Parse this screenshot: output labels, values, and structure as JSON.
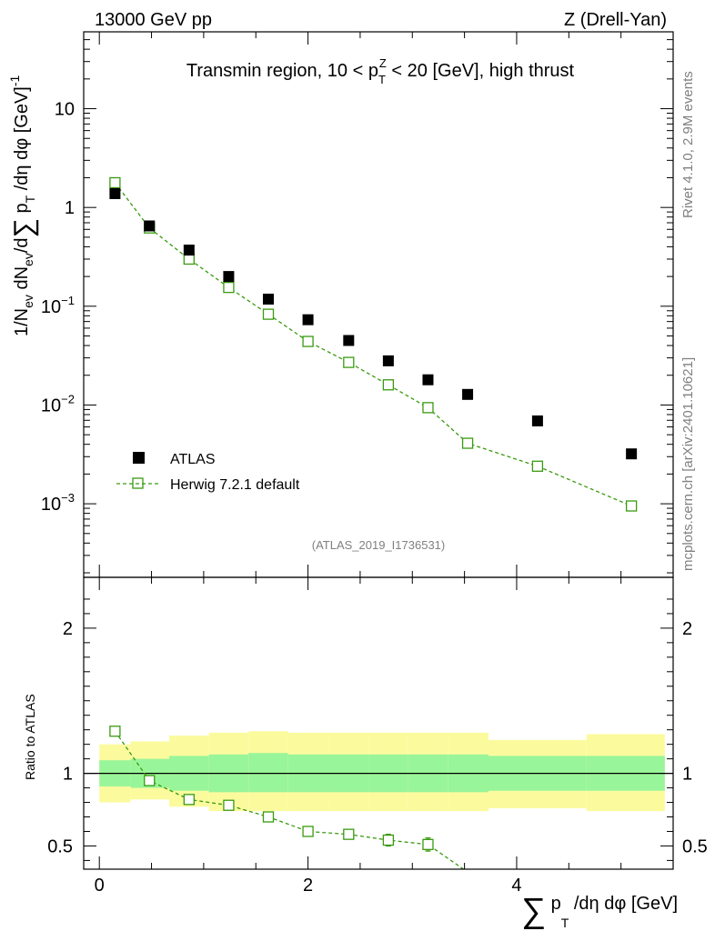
{
  "header": {
    "energy_label": "13000 GeV pp",
    "process_label": "Z (Drell-Yan)"
  },
  "side_labels": {
    "rivet": "Rivet 4.1.0,  2.9M events",
    "mcplots": "mcplots.cern.ch [arXiv:2401.10621]"
  },
  "colors": {
    "data": "#000000",
    "mc": "#3a9a10",
    "band_inner": "#99f599",
    "band_outer": "#fbfb9e"
  },
  "chart_data": [
    {
      "type": "scatter",
      "title_parts": {
        "pre": "Transmin region, 10 < p",
        "sub": "T",
        "sup": "Z",
        "post": " < 20 [GeV], high thrust"
      },
      "watermark": "(ATLAS_2019_I1736531)",
      "yscale": "log",
      "xlim": [
        -0.15,
        5.5
      ],
      "ylim": [
        0.00018,
        60
      ],
      "ylabel": "1/N_ev dN_ev/d Σ p_T /dη dφ [GeV]^-1",
      "ytick_labels": [
        {
          "value": 10,
          "text": "10"
        },
        {
          "value": 1,
          "text": "1"
        },
        {
          "value": 0.1,
          "base": "10",
          "exp": "−1"
        },
        {
          "value": 0.01,
          "base": "10",
          "exp": "−2"
        },
        {
          "value": 0.001,
          "base": "10",
          "exp": "−3"
        }
      ],
      "legend": {
        "position": "lower-left",
        "entries": [
          "ATLAS",
          "Herwig 7.2.1 default"
        ]
      },
      "series": [
        {
          "name": "ATLAS",
          "marker": "filled-square",
          "x": [
            0.15,
            0.48,
            0.86,
            1.24,
            1.62,
            2.0,
            2.39,
            2.77,
            3.15,
            3.53,
            4.2,
            5.1
          ],
          "y": [
            1.38,
            0.65,
            0.37,
            0.2,
            0.118,
            0.073,
            0.045,
            0.028,
            0.018,
            0.0128,
            0.0069,
            0.0032
          ]
        },
        {
          "name": "Herwig 7.2.1 default",
          "marker": "open-square-dashed",
          "x": [
            0.15,
            0.48,
            0.86,
            1.24,
            1.62,
            2.0,
            2.39,
            2.77,
            3.15,
            3.53,
            4.2,
            5.1
          ],
          "y": [
            1.78,
            0.62,
            0.3,
            0.155,
            0.083,
            0.044,
            0.027,
            0.016,
            0.0094,
            0.0041,
            0.0024,
            0.00095
          ]
        }
      ]
    },
    {
      "type": "line",
      "ylabel": "Ratio to ATLAS",
      "xlabel": "Σ p_T /dη dφ [GeV]",
      "xlim": [
        -0.15,
        5.5
      ],
      "ylim": [
        0.34,
        2.35
      ],
      "x_ticks": [
        0,
        2,
        4
      ],
      "x_tick_labels": [
        "0",
        "2",
        "4"
      ],
      "y_ticks": [
        0.5,
        1,
        2
      ],
      "y_tick_labels": [
        "0.5",
        "1",
        "2"
      ],
      "reference_line": 1,
      "band_bins": [
        {
          "x0": 0.0,
          "x1": 0.3,
          "inner": [
            0.91,
            1.09
          ],
          "outer": [
            0.8,
            1.2
          ]
        },
        {
          "x0": 0.3,
          "x1": 0.67,
          "inner": [
            0.9,
            1.1
          ],
          "outer": [
            0.82,
            1.22
          ]
        },
        {
          "x0": 0.67,
          "x1": 1.05,
          "inner": [
            0.88,
            1.12
          ],
          "outer": [
            0.77,
            1.26
          ]
        },
        {
          "x0": 1.05,
          "x1": 1.43,
          "inner": [
            0.87,
            1.13
          ],
          "outer": [
            0.74,
            1.28
          ]
        },
        {
          "x0": 1.43,
          "x1": 1.81,
          "inner": [
            0.87,
            1.14
          ],
          "outer": [
            0.74,
            1.29
          ]
        },
        {
          "x0": 1.81,
          "x1": 2.2,
          "inner": [
            0.87,
            1.13
          ],
          "outer": [
            0.74,
            1.28
          ]
        },
        {
          "x0": 2.2,
          "x1": 2.58,
          "inner": [
            0.87,
            1.13
          ],
          "outer": [
            0.74,
            1.28
          ]
        },
        {
          "x0": 2.58,
          "x1": 2.96,
          "inner": [
            0.87,
            1.13
          ],
          "outer": [
            0.74,
            1.28
          ]
        },
        {
          "x0": 2.96,
          "x1": 3.34,
          "inner": [
            0.87,
            1.13
          ],
          "outer": [
            0.74,
            1.28
          ]
        },
        {
          "x0": 3.34,
          "x1": 3.73,
          "inner": [
            0.87,
            1.13
          ],
          "outer": [
            0.74,
            1.28
          ]
        },
        {
          "x0": 3.73,
          "x1": 4.67,
          "inner": [
            0.88,
            1.12
          ],
          "outer": [
            0.76,
            1.23
          ]
        },
        {
          "x0": 4.67,
          "x1": 5.42,
          "inner": [
            0.88,
            1.12
          ],
          "outer": [
            0.74,
            1.27
          ]
        }
      ],
      "series": [
        {
          "name": "Herwig 7.2.1 default / ATLAS",
          "x": [
            0.15,
            0.48,
            0.86,
            1.24,
            1.62,
            2.0,
            2.39,
            2.77,
            3.15
          ],
          "y": [
            1.29,
            0.95,
            0.82,
            0.78,
            0.7,
            0.6,
            0.58,
            0.54,
            0.51
          ],
          "err": [
            0,
            0,
            0,
            0,
            0,
            0.025,
            0.03,
            0.04,
            0.045
          ],
          "continues_to": {
            "x": 3.53,
            "y": 0.32
          }
        }
      ]
    }
  ]
}
